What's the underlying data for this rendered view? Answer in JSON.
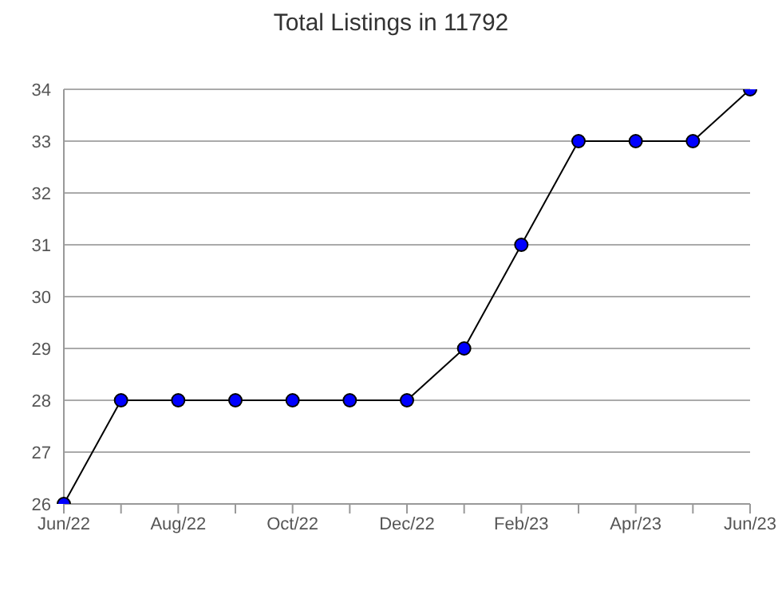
{
  "chart_data": {
    "type": "line",
    "title": "Total Listings in 11792",
    "categories": [
      "Jun/22",
      null,
      "Aug/22",
      null,
      "Oct/22",
      null,
      "Dec/22",
      null,
      "Feb/23",
      null,
      "Apr/23",
      null,
      "Jun/23"
    ],
    "series": [
      {
        "color": "#0000ff",
        "values": [
          26,
          28,
          28,
          28,
          28,
          28,
          28,
          29,
          31,
          33,
          33,
          33,
          34
        ]
      }
    ],
    "ylim": [
      26,
      34
    ],
    "yticks": [
      26,
      27,
      28,
      29,
      30,
      31,
      32,
      33,
      34
    ],
    "grid": "y",
    "marker": "circle",
    "legend": false
  }
}
